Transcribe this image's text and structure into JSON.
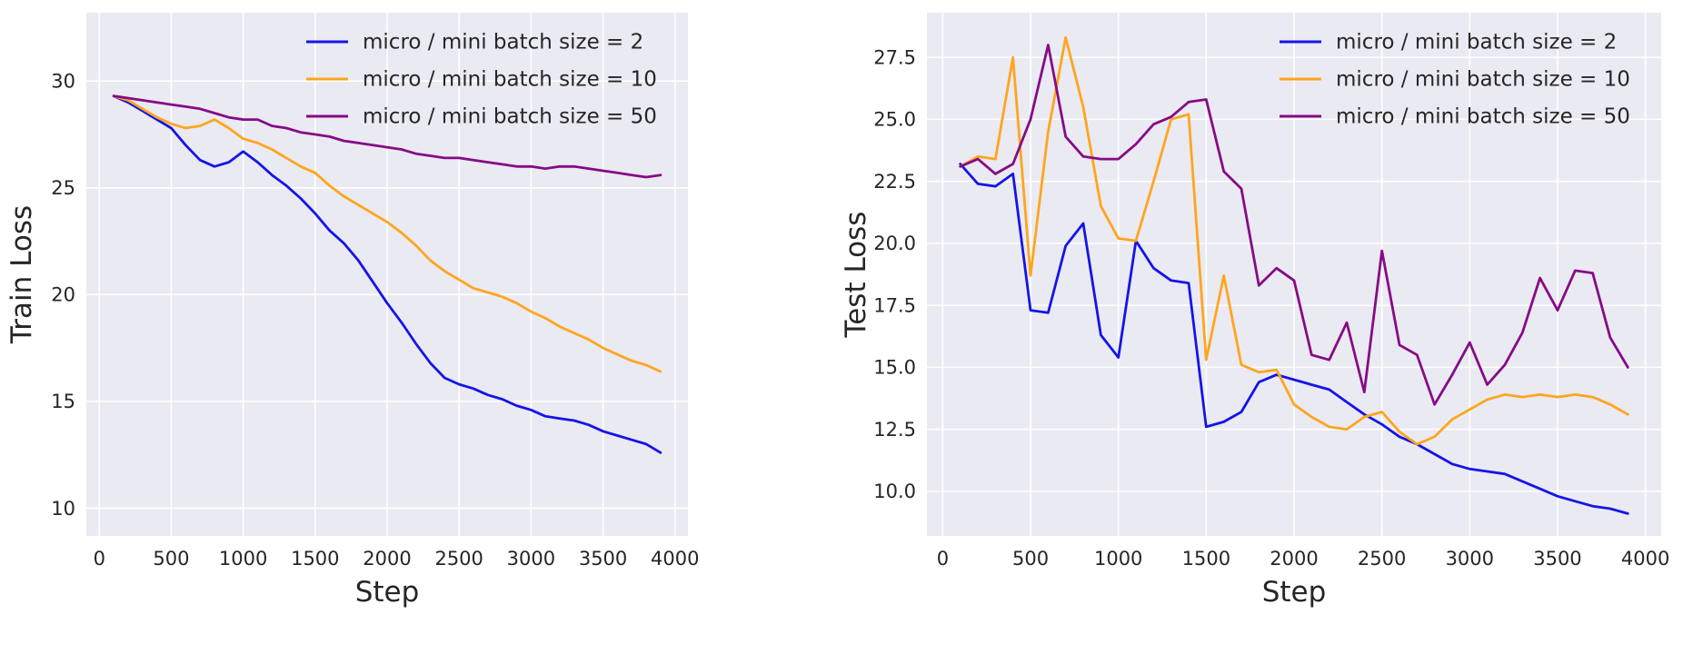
{
  "figure": {
    "background": "#ffffff",
    "plot_background": "#eaeaf2",
    "grid_color": "#ffffff",
    "text_color": "#262626"
  },
  "chart_data": [
    {
      "type": "line",
      "panel": "left",
      "title": "",
      "xlabel": "Step",
      "ylabel": "Train Loss",
      "xlim": [
        -90,
        4090
      ],
      "ylim": [
        8.7,
        33.2
      ],
      "xticks": [
        0,
        500,
        1000,
        1500,
        2000,
        2500,
        3000,
        3500,
        4000
      ],
      "xticklabels": [
        "0",
        "500",
        "1000",
        "1500",
        "2000",
        "2500",
        "3000",
        "3500",
        "4000"
      ],
      "yticks": [
        10,
        15,
        20,
        25,
        30
      ],
      "yticklabels": [
        "10",
        "15",
        "20",
        "25",
        "30"
      ],
      "grid": true,
      "legend_position": "upper right",
      "x": [
        100,
        200,
        300,
        400,
        500,
        600,
        700,
        800,
        900,
        1000,
        1100,
        1200,
        1300,
        1400,
        1500,
        1600,
        1700,
        1800,
        1900,
        2000,
        2100,
        2200,
        2300,
        2400,
        2500,
        2600,
        2700,
        2800,
        2900,
        3000,
        3100,
        3200,
        3300,
        3400,
        3500,
        3600,
        3700,
        3800,
        3900
      ],
      "series": [
        {
          "name": "micro / mini batch size = 2",
          "color": "#1414e8",
          "values": [
            29.3,
            29.0,
            28.6,
            28.2,
            27.8,
            27.0,
            26.3,
            26.0,
            26.2,
            26.7,
            26.2,
            25.6,
            25.1,
            24.5,
            23.8,
            23.0,
            22.4,
            21.6,
            20.6,
            19.6,
            18.7,
            17.7,
            16.8,
            16.1,
            15.8,
            15.6,
            15.3,
            15.1,
            14.8,
            14.6,
            14.3,
            14.2,
            14.1,
            13.9,
            13.6,
            13.4,
            13.2,
            13.0,
            12.6
          ]
        },
        {
          "name": "micro / mini batch size = 10",
          "color": "#ffa51e",
          "values": [
            29.3,
            29.1,
            28.7,
            28.3,
            28.0,
            27.8,
            27.9,
            28.2,
            27.8,
            27.3,
            27.1,
            26.8,
            26.4,
            26.0,
            25.7,
            25.1,
            24.6,
            24.2,
            23.8,
            23.4,
            22.9,
            22.3,
            21.6,
            21.1,
            20.7,
            20.3,
            20.1,
            19.9,
            19.6,
            19.2,
            18.9,
            18.5,
            18.2,
            17.9,
            17.5,
            17.2,
            16.9,
            16.7,
            16.4
          ]
        },
        {
          "name": "micro / mini batch size = 50",
          "color": "#860b86",
          "values": [
            29.3,
            29.2,
            29.1,
            29.0,
            28.9,
            28.8,
            28.7,
            28.5,
            28.3,
            28.2,
            28.2,
            27.9,
            27.8,
            27.6,
            27.5,
            27.4,
            27.2,
            27.1,
            27.0,
            26.9,
            26.8,
            26.6,
            26.5,
            26.4,
            26.4,
            26.3,
            26.2,
            26.1,
            26.0,
            26.0,
            25.9,
            26.0,
            26.0,
            25.9,
            25.8,
            25.7,
            25.6,
            25.5,
            25.6
          ]
        }
      ]
    },
    {
      "type": "line",
      "panel": "right",
      "title": "",
      "xlabel": "Step",
      "ylabel": "Test Loss",
      "xlim": [
        -90,
        4090
      ],
      "ylim": [
        8.2,
        29.3
      ],
      "xticks": [
        0,
        500,
        1000,
        1500,
        2000,
        2500,
        3000,
        3500,
        4000
      ],
      "xticklabels": [
        "0",
        "500",
        "1000",
        "1500",
        "2000",
        "2500",
        "3000",
        "3500",
        "4000"
      ],
      "yticks": [
        10.0,
        12.5,
        15.0,
        17.5,
        20.0,
        22.5,
        25.0,
        27.5
      ],
      "yticklabels": [
        "10.0",
        "12.5",
        "15.0",
        "17.5",
        "20.0",
        "22.5",
        "25.0",
        "27.5"
      ],
      "grid": true,
      "legend_position": "upper right",
      "x": [
        100,
        200,
        300,
        400,
        500,
        600,
        700,
        800,
        900,
        1000,
        1100,
        1200,
        1300,
        1400,
        1500,
        1600,
        1700,
        1800,
        1900,
        2000,
        2100,
        2200,
        2300,
        2400,
        2500,
        2600,
        2700,
        2800,
        2900,
        3000,
        3100,
        3200,
        3300,
        3400,
        3500,
        3600,
        3700,
        3800,
        3900
      ],
      "series": [
        {
          "name": "micro / mini batch size = 2",
          "color": "#1414e8",
          "values": [
            23.2,
            22.4,
            22.3,
            22.8,
            17.3,
            17.2,
            19.9,
            20.8,
            16.3,
            15.4,
            20.1,
            19.0,
            18.5,
            18.4,
            12.6,
            12.8,
            13.2,
            14.4,
            14.7,
            14.5,
            14.3,
            14.1,
            13.6,
            13.1,
            12.7,
            12.2,
            11.9,
            11.5,
            11.1,
            10.9,
            10.8,
            10.7,
            10.4,
            10.1,
            9.8,
            9.6,
            9.4,
            9.3,
            9.1
          ]
        },
        {
          "name": "micro / mini batch size = 10",
          "color": "#ffa51e",
          "values": [
            23.1,
            23.5,
            23.4,
            27.5,
            18.7,
            24.5,
            28.3,
            25.5,
            21.5,
            20.2,
            20.1,
            22.5,
            25.0,
            25.2,
            15.3,
            18.7,
            15.1,
            14.8,
            14.9,
            13.5,
            13.0,
            12.6,
            12.5,
            13.0,
            13.2,
            12.4,
            11.9,
            12.2,
            12.9,
            13.3,
            13.7,
            13.9,
            13.8,
            13.9,
            13.8,
            13.9,
            13.8,
            13.5,
            13.1
          ]
        },
        {
          "name": "micro / mini batch size = 50",
          "color": "#860b86",
          "values": [
            23.1,
            23.4,
            22.8,
            23.2,
            25.0,
            28.0,
            24.3,
            23.5,
            23.4,
            23.4,
            24.0,
            24.8,
            25.1,
            25.7,
            25.8,
            22.9,
            22.2,
            18.3,
            19.0,
            18.5,
            15.5,
            15.3,
            16.8,
            14.0,
            19.7,
            15.9,
            15.5,
            13.5,
            14.7,
            16.0,
            14.3,
            15.1,
            16.4,
            18.6,
            17.3,
            18.9,
            18.8,
            16.2,
            15.0
          ]
        }
      ]
    }
  ]
}
